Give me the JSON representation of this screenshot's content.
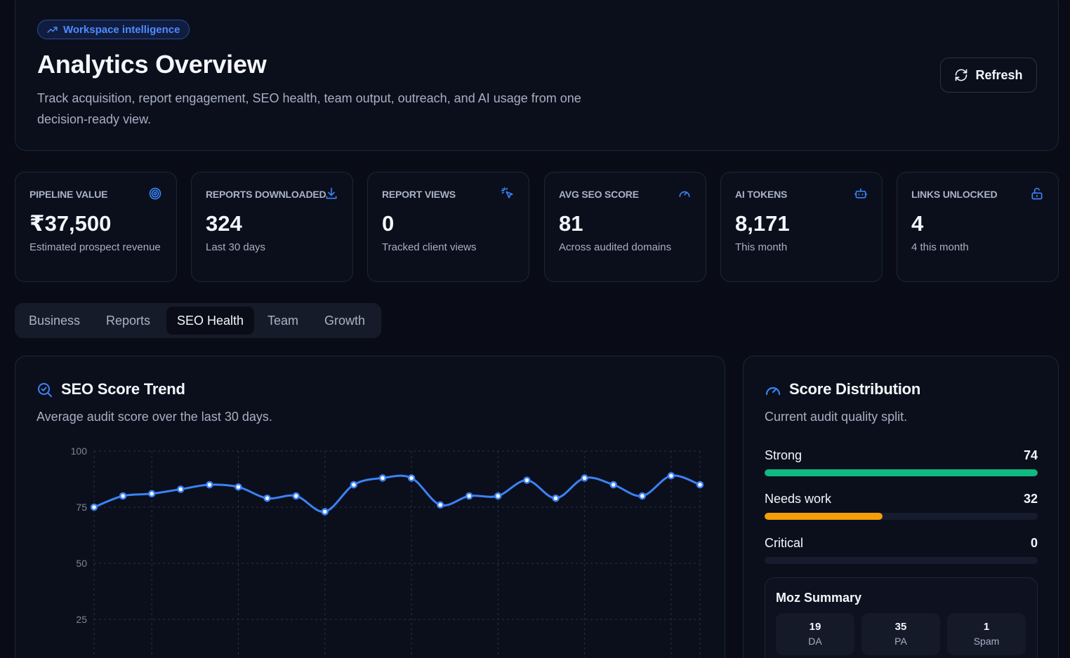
{
  "header": {
    "badge": "Workspace intelligence",
    "badge_icon": "trending-up-icon",
    "title": "Analytics Overview",
    "subtitle": "Track acquisition, report engagement, SEO health, team output, outreach, and AI usage from one decision-ready view.",
    "refresh_label": "Refresh",
    "refresh_icon": "refresh-icon"
  },
  "stats": [
    {
      "label": "PIPELINE VALUE",
      "value": "₹37,500",
      "desc": "Estimated prospect revenue",
      "icon": "target-icon"
    },
    {
      "label": "REPORTS DOWNLOADED",
      "value": "324",
      "desc": "Last 30 days",
      "icon": "download-icon"
    },
    {
      "label": "REPORT VIEWS",
      "value": "0",
      "desc": "Tracked client views",
      "icon": "cursor-click-icon"
    },
    {
      "label": "AVG SEO SCORE",
      "value": "81",
      "desc": "Across audited domains",
      "icon": "gauge-icon"
    },
    {
      "label": "AI TOKENS",
      "value": "8,171",
      "desc": "This month",
      "icon": "bot-icon"
    },
    {
      "label": "LINKS UNLOCKED",
      "value": "4",
      "desc": "4 this month",
      "icon": "unlock-icon"
    }
  ],
  "tabs": [
    {
      "label": "Business",
      "active": false
    },
    {
      "label": "Reports",
      "active": false
    },
    {
      "label": "SEO Health",
      "active": true
    },
    {
      "label": "Team",
      "active": false
    },
    {
      "label": "Growth",
      "active": false
    }
  ],
  "trend": {
    "title": "SEO Score Trend",
    "subtitle": "Average audit score over the last 30 days.",
    "icon": "search-check-icon"
  },
  "chart_data": {
    "type": "line",
    "title": "SEO Score Trend",
    "xlabel": "",
    "ylabel": "",
    "y_ticks": [
      100,
      75,
      50,
      25
    ],
    "ylim": [
      0,
      100
    ],
    "grid": true,
    "line_color": "#3b82f6",
    "series": [
      {
        "values": [
          75,
          80,
          81,
          83,
          85,
          84,
          79,
          80,
          73,
          85,
          88,
          88,
          76,
          80,
          80,
          87,
          79,
          88,
          85,
          80,
          89,
          85
        ]
      }
    ]
  },
  "distribution": {
    "title": "Score Distribution",
    "subtitle": "Current audit quality split.",
    "icon": "gauge-icon",
    "rows": [
      {
        "label": "Strong",
        "value": "74",
        "fraction": 1.0,
        "color": "#10b981"
      },
      {
        "label": "Needs work",
        "value": "32",
        "fraction": 0.432,
        "color": "#f59e0b"
      },
      {
        "label": "Critical",
        "value": "0",
        "fraction": 0.0,
        "color": "#ef4444"
      }
    ],
    "moz": {
      "title": "Moz Summary",
      "items": [
        {
          "value": "19",
          "label": "DA"
        },
        {
          "value": "35",
          "label": "PA"
        },
        {
          "value": "1",
          "label": "Spam"
        }
      ]
    }
  },
  "colors": {
    "accent": "#3b82f6",
    "background": "#090c17",
    "card": "#0b0f1c"
  }
}
